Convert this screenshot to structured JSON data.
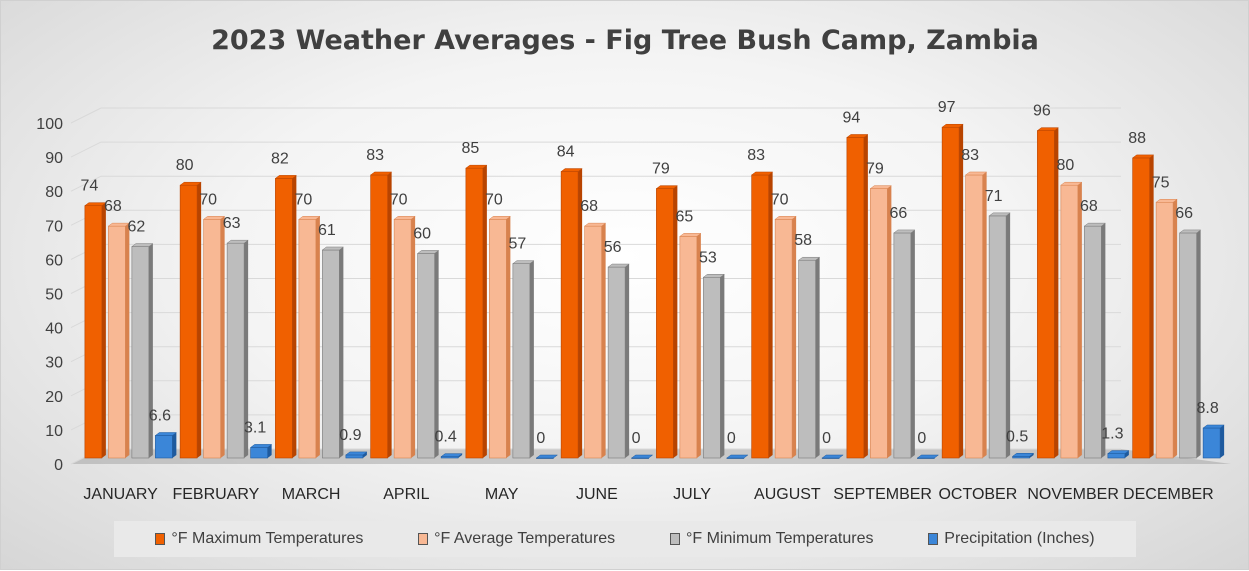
{
  "chart_data": {
    "type": "bar",
    "title": "2023 Weather Averages - Fig Tree Bush Camp, Zambia",
    "categories": [
      "JANUARY",
      "FEBRUARY",
      "MARCH",
      "APRIL",
      "MAY",
      "JUNE",
      "JULY",
      "AUGUST",
      "SEPTEMBER",
      "OCTOBER",
      "NOVEMBER",
      "DECEMBER"
    ],
    "series": [
      {
        "name": "°F Maximum Temperatures",
        "values": [
          74,
          80,
          82,
          83,
          85,
          84,
          79,
          83,
          94,
          97,
          96,
          88
        ],
        "color": "#f06000",
        "dark": "#b84400"
      },
      {
        "name": "°F Average Temperatures",
        "values": [
          68,
          70,
          70,
          70,
          70,
          68,
          65,
          70,
          79,
          83,
          80,
          75
        ],
        "color": "#f8b894",
        "dark": "#d8824e"
      },
      {
        "name": "°F Minimum Temperatures",
        "values": [
          62,
          63,
          61,
          60,
          57,
          56,
          53,
          58,
          66,
          71,
          68,
          66
        ],
        "color": "#bdbdbd",
        "dark": "#7a7a7a"
      },
      {
        "name": "Precipitation (Inches)",
        "values": [
          6.6,
          3.1,
          0.9,
          0.4,
          0,
          0,
          0,
          0,
          0,
          0.5,
          1.3,
          8.8
        ],
        "color": "#3b86d8",
        "dark": "#1e5a9e"
      }
    ],
    "ylim": [
      0,
      100
    ],
    "yticks": [
      0,
      10,
      20,
      30,
      40,
      50,
      60,
      70,
      80,
      90,
      100
    ],
    "ylabel": "",
    "xlabel": "",
    "grid": true,
    "legend": "bottom"
  }
}
